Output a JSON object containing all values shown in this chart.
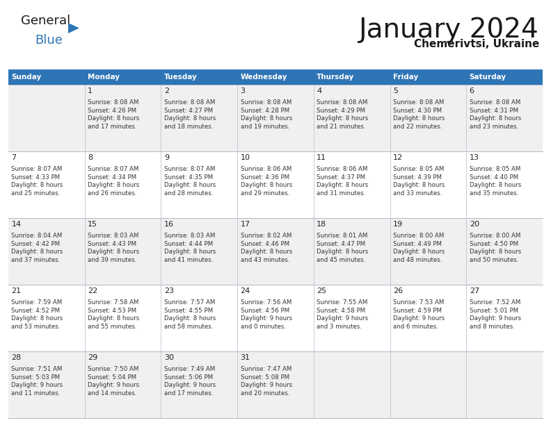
{
  "title": "January 2024",
  "subtitle": "Chemerivtsi, Ukraine",
  "days_of_week": [
    "Sunday",
    "Monday",
    "Tuesday",
    "Wednesday",
    "Thursday",
    "Friday",
    "Saturday"
  ],
  "header_bg": "#2e75b6",
  "header_text": "#ffffff",
  "row_bg_odd": "#f0f0f0",
  "row_bg_even": "#ffffff",
  "cell_text_color": "#333333",
  "day_number_color": "#222222",
  "grid_line_color": "#b0b8c8",
  "bg_color": "#ffffff",
  "title_color": "#1a1a1a",
  "subtitle_color": "#1a1a1a",
  "logo_general_color": "#1a1a1a",
  "logo_blue_color": "#2e75b6",
  "logo_triangle_color": "#2e75b6",
  "calendar_data": [
    [
      {
        "day": null,
        "sunrise": null,
        "sunset": null,
        "daylight": null
      },
      {
        "day": 1,
        "sunrise": "8:08 AM",
        "sunset": "4:26 PM",
        "daylight": "8 hours\nand 17 minutes."
      },
      {
        "day": 2,
        "sunrise": "8:08 AM",
        "sunset": "4:27 PM",
        "daylight": "8 hours\nand 18 minutes."
      },
      {
        "day": 3,
        "sunrise": "8:08 AM",
        "sunset": "4:28 PM",
        "daylight": "8 hours\nand 19 minutes."
      },
      {
        "day": 4,
        "sunrise": "8:08 AM",
        "sunset": "4:29 PM",
        "daylight": "8 hours\nand 21 minutes."
      },
      {
        "day": 5,
        "sunrise": "8:08 AM",
        "sunset": "4:30 PM",
        "daylight": "8 hours\nand 22 minutes."
      },
      {
        "day": 6,
        "sunrise": "8:08 AM",
        "sunset": "4:31 PM",
        "daylight": "8 hours\nand 23 minutes."
      }
    ],
    [
      {
        "day": 7,
        "sunrise": "8:07 AM",
        "sunset": "4:33 PM",
        "daylight": "8 hours\nand 25 minutes."
      },
      {
        "day": 8,
        "sunrise": "8:07 AM",
        "sunset": "4:34 PM",
        "daylight": "8 hours\nand 26 minutes."
      },
      {
        "day": 9,
        "sunrise": "8:07 AM",
        "sunset": "4:35 PM",
        "daylight": "8 hours\nand 28 minutes."
      },
      {
        "day": 10,
        "sunrise": "8:06 AM",
        "sunset": "4:36 PM",
        "daylight": "8 hours\nand 29 minutes."
      },
      {
        "day": 11,
        "sunrise": "8:06 AM",
        "sunset": "4:37 PM",
        "daylight": "8 hours\nand 31 minutes."
      },
      {
        "day": 12,
        "sunrise": "8:05 AM",
        "sunset": "4:39 PM",
        "daylight": "8 hours\nand 33 minutes."
      },
      {
        "day": 13,
        "sunrise": "8:05 AM",
        "sunset": "4:40 PM",
        "daylight": "8 hours\nand 35 minutes."
      }
    ],
    [
      {
        "day": 14,
        "sunrise": "8:04 AM",
        "sunset": "4:42 PM",
        "daylight": "8 hours\nand 37 minutes."
      },
      {
        "day": 15,
        "sunrise": "8:03 AM",
        "sunset": "4:43 PM",
        "daylight": "8 hours\nand 39 minutes."
      },
      {
        "day": 16,
        "sunrise": "8:03 AM",
        "sunset": "4:44 PM",
        "daylight": "8 hours\nand 41 minutes."
      },
      {
        "day": 17,
        "sunrise": "8:02 AM",
        "sunset": "4:46 PM",
        "daylight": "8 hours\nand 43 minutes."
      },
      {
        "day": 18,
        "sunrise": "8:01 AM",
        "sunset": "4:47 PM",
        "daylight": "8 hours\nand 45 minutes."
      },
      {
        "day": 19,
        "sunrise": "8:00 AM",
        "sunset": "4:49 PM",
        "daylight": "8 hours\nand 48 minutes."
      },
      {
        "day": 20,
        "sunrise": "8:00 AM",
        "sunset": "4:50 PM",
        "daylight": "8 hours\nand 50 minutes."
      }
    ],
    [
      {
        "day": 21,
        "sunrise": "7:59 AM",
        "sunset": "4:52 PM",
        "daylight": "8 hours\nand 53 minutes."
      },
      {
        "day": 22,
        "sunrise": "7:58 AM",
        "sunset": "4:53 PM",
        "daylight": "8 hours\nand 55 minutes."
      },
      {
        "day": 23,
        "sunrise": "7:57 AM",
        "sunset": "4:55 PM",
        "daylight": "8 hours\nand 58 minutes."
      },
      {
        "day": 24,
        "sunrise": "7:56 AM",
        "sunset": "4:56 PM",
        "daylight": "9 hours\nand 0 minutes."
      },
      {
        "day": 25,
        "sunrise": "7:55 AM",
        "sunset": "4:58 PM",
        "daylight": "9 hours\nand 3 minutes."
      },
      {
        "day": 26,
        "sunrise": "7:53 AM",
        "sunset": "4:59 PM",
        "daylight": "9 hours\nand 6 minutes."
      },
      {
        "day": 27,
        "sunrise": "7:52 AM",
        "sunset": "5:01 PM",
        "daylight": "9 hours\nand 8 minutes."
      }
    ],
    [
      {
        "day": 28,
        "sunrise": "7:51 AM",
        "sunset": "5:03 PM",
        "daylight": "9 hours\nand 11 minutes."
      },
      {
        "day": 29,
        "sunrise": "7:50 AM",
        "sunset": "5:04 PM",
        "daylight": "9 hours\nand 14 minutes."
      },
      {
        "day": 30,
        "sunrise": "7:49 AM",
        "sunset": "5:06 PM",
        "daylight": "9 hours\nand 17 minutes."
      },
      {
        "day": 31,
        "sunrise": "7:47 AM",
        "sunset": "5:08 PM",
        "daylight": "9 hours\nand 20 minutes."
      },
      {
        "day": null,
        "sunrise": null,
        "sunset": null,
        "daylight": null
      },
      {
        "day": null,
        "sunrise": null,
        "sunset": null,
        "daylight": null
      },
      {
        "day": null,
        "sunrise": null,
        "sunset": null,
        "daylight": null
      }
    ]
  ]
}
